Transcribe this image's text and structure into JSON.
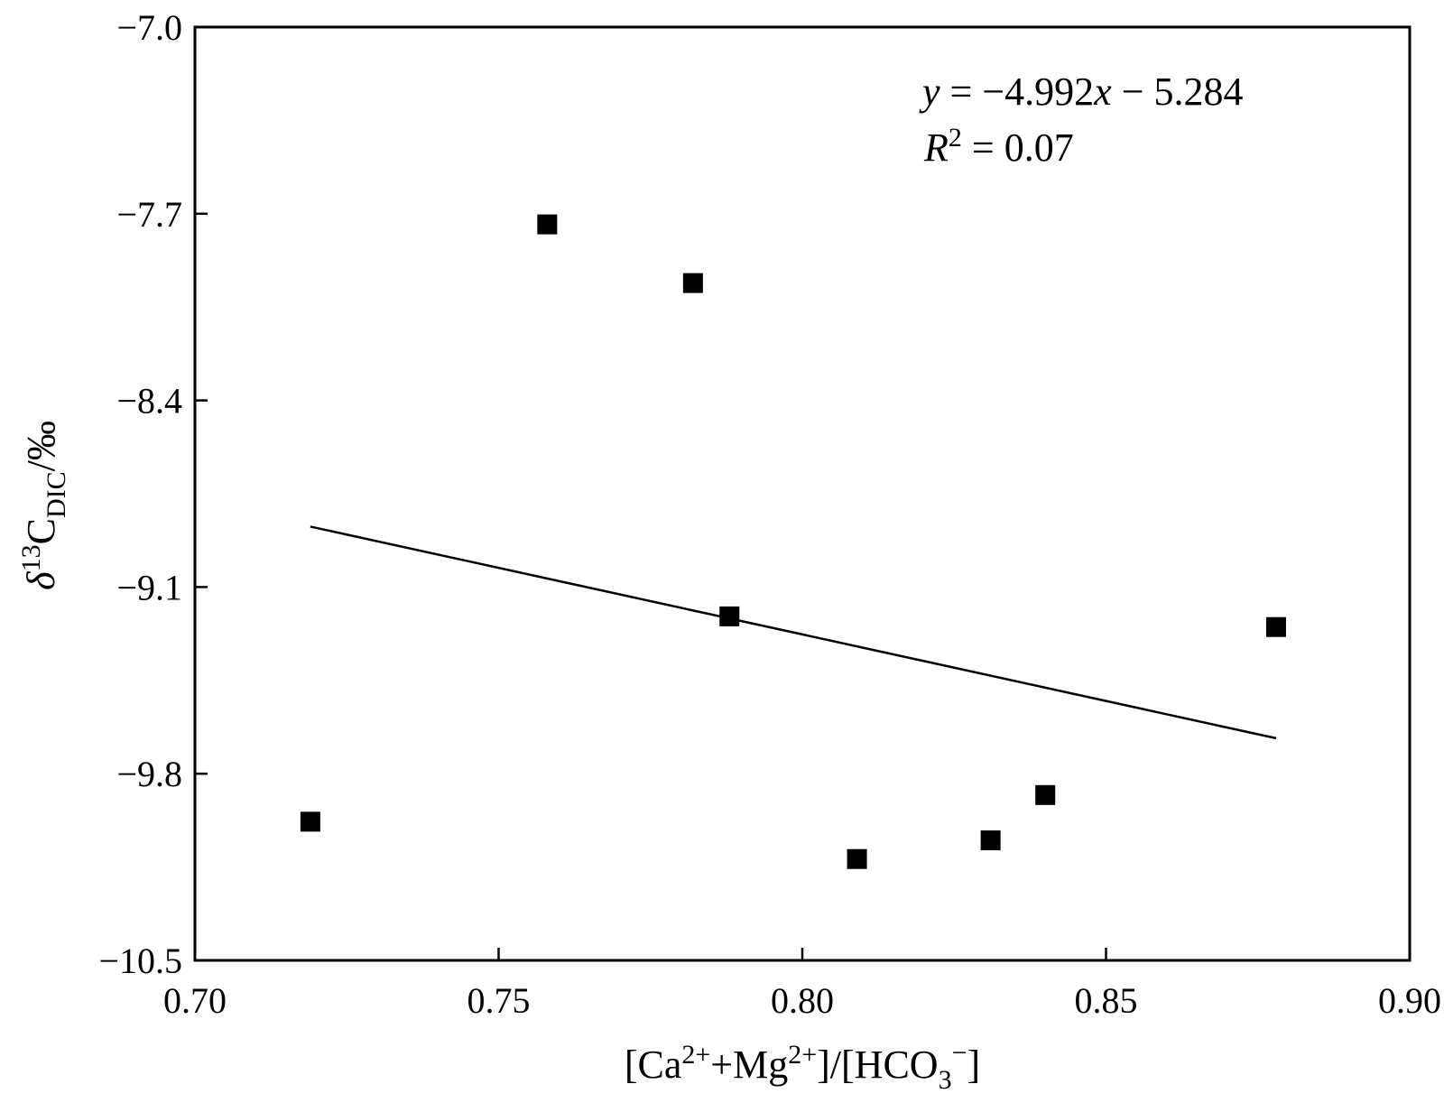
{
  "chart_data": {
    "type": "scatter",
    "title": "",
    "xlabel": "[Ca2++Mg2+]/[HCO3−]",
    "ylabel": "δ13CDIC/‰",
    "xlim": [
      0.7,
      0.9
    ],
    "ylim": [
      -10.5,
      -7.0
    ],
    "x_ticks": [
      0.7,
      0.75,
      0.8,
      0.85,
      0.9
    ],
    "x_tick_labels": [
      "0.70",
      "0.75",
      "0.80",
      "0.85",
      "0.90"
    ],
    "y_ticks": [
      -7.0,
      -7.7,
      -8.4,
      -9.1,
      -9.8,
      -10.5
    ],
    "y_tick_labels": [
      "−7.0",
      "−7.7",
      "−8.4",
      "−9.1",
      "−9.8",
      "−10.5"
    ],
    "grid": false,
    "series": [
      {
        "marker": "square",
        "color": "#000000",
        "points": [
          {
            "x": 0.719,
            "y": -9.98
          },
          {
            "x": 0.758,
            "y": -7.74
          },
          {
            "x": 0.782,
            "y": -7.96
          },
          {
            "x": 0.788,
            "y": -9.21
          },
          {
            "x": 0.809,
            "y": -10.12
          },
          {
            "x": 0.831,
            "y": -10.05
          },
          {
            "x": 0.84,
            "y": -9.88
          },
          {
            "x": 0.878,
            "y": -9.25
          }
        ]
      }
    ],
    "fit_line": {
      "slope": -4.992,
      "intercept": -5.284,
      "x_range": [
        0.719,
        0.878
      ]
    },
    "annotations": {
      "equation": {
        "y": "y",
        "eq": " = −4.992",
        "x": "x",
        "rest": " − 5.284"
      },
      "r2": {
        "r": "R",
        "sup": "2",
        "rest": " = 0.07"
      }
    }
  }
}
